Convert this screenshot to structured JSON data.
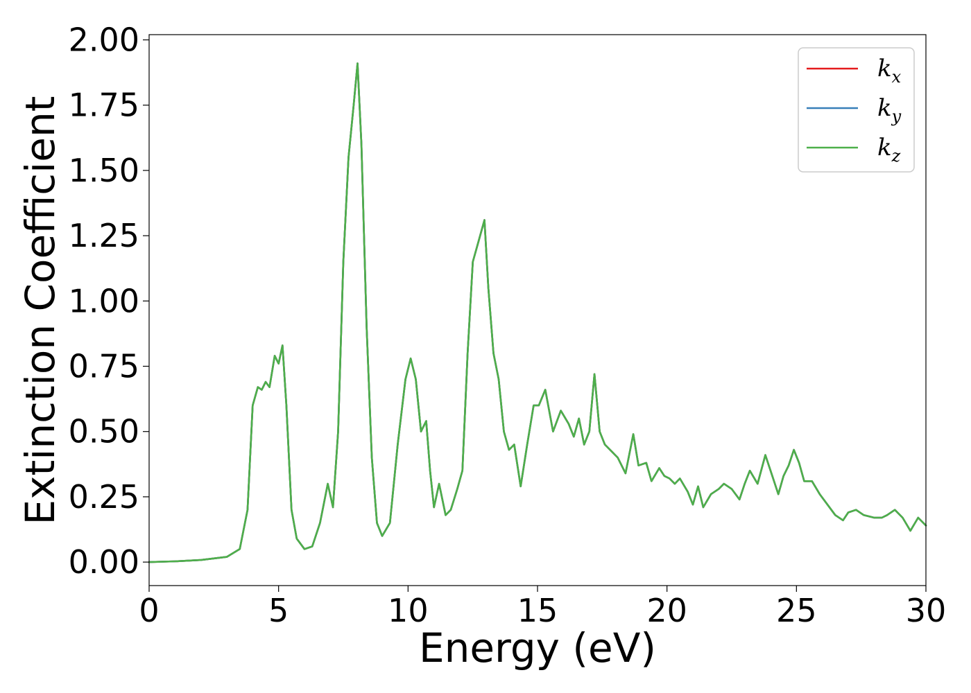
{
  "chart_data": {
    "type": "line",
    "xlabel": "Energy (eV)",
    "ylabel": "Extinction Coefficient",
    "xlim": [
      0,
      30
    ],
    "ylim": [
      -0.09,
      2.02
    ],
    "xticks": [
      0,
      5,
      10,
      15,
      20,
      25,
      30
    ],
    "xtick_labels": [
      "0",
      "5",
      "10",
      "15",
      "20",
      "25",
      "30"
    ],
    "yticks": [
      0,
      0.25,
      0.5,
      0.75,
      1.0,
      1.25,
      1.5,
      1.75,
      2.0
    ],
    "ytick_labels": [
      "0.00",
      "0.25",
      "0.50",
      "0.75",
      "1.00",
      "1.25",
      "1.50",
      "1.75",
      "2.00"
    ],
    "grid": false,
    "legend_position": "top-right",
    "series": [
      {
        "name": "k_x",
        "label_main": "k",
        "label_sub": "x",
        "color": "#e41a1c",
        "x": [
          0,
          1,
          2,
          3,
          3.5,
          3.8,
          4.0,
          4.2,
          4.35,
          4.5,
          4.65,
          4.85,
          5.0,
          5.15,
          5.3,
          5.5,
          5.7,
          6.0,
          6.3,
          6.6,
          6.9,
          7.1,
          7.3,
          7.5,
          7.7,
          7.9,
          8.05,
          8.2,
          8.4,
          8.6,
          8.8,
          9.0,
          9.3,
          9.6,
          9.9,
          10.1,
          10.3,
          10.5,
          10.7,
          10.85,
          11.0,
          11.2,
          11.45,
          11.65,
          11.9,
          12.1,
          12.3,
          12.5,
          12.7,
          12.95,
          13.1,
          13.3,
          13.5,
          13.7,
          13.9,
          14.1,
          14.35,
          14.6,
          14.85,
          15.05,
          15.3,
          15.6,
          15.9,
          16.2,
          16.4,
          16.6,
          16.8,
          17.0,
          17.2,
          17.4,
          17.6,
          17.9,
          18.1,
          18.4,
          18.7,
          18.9,
          19.2,
          19.4,
          19.7,
          19.9,
          20.1,
          20.3,
          20.5,
          20.8,
          21.0,
          21.2,
          21.4,
          21.7,
          22.0,
          22.2,
          22.5,
          22.8,
          23.0,
          23.2,
          23.5,
          23.8,
          24.0,
          24.3,
          24.5,
          24.7,
          24.9,
          25.1,
          25.3,
          25.6,
          25.9,
          26.2,
          26.5,
          26.8,
          27.0,
          27.3,
          27.6,
          28.0,
          28.3,
          28.5,
          28.8,
          29.1,
          29.4,
          29.7,
          30.0
        ],
        "y": [
          0.0,
          0.003,
          0.008,
          0.02,
          0.05,
          0.2,
          0.6,
          0.67,
          0.66,
          0.69,
          0.67,
          0.79,
          0.76,
          0.83,
          0.6,
          0.2,
          0.09,
          0.05,
          0.06,
          0.15,
          0.3,
          0.21,
          0.5,
          1.15,
          1.55,
          1.75,
          1.91,
          1.6,
          0.9,
          0.4,
          0.15,
          0.1,
          0.15,
          0.45,
          0.7,
          0.78,
          0.7,
          0.5,
          0.54,
          0.35,
          0.21,
          0.3,
          0.18,
          0.2,
          0.28,
          0.35,
          0.8,
          1.15,
          1.22,
          1.31,
          1.05,
          0.8,
          0.7,
          0.5,
          0.43,
          0.45,
          0.29,
          0.45,
          0.6,
          0.6,
          0.66,
          0.5,
          0.58,
          0.53,
          0.48,
          0.55,
          0.45,
          0.5,
          0.72,
          0.5,
          0.45,
          0.42,
          0.4,
          0.34,
          0.49,
          0.37,
          0.38,
          0.31,
          0.36,
          0.33,
          0.32,
          0.3,
          0.32,
          0.27,
          0.22,
          0.29,
          0.21,
          0.26,
          0.28,
          0.3,
          0.28,
          0.24,
          0.3,
          0.35,
          0.3,
          0.41,
          0.35,
          0.26,
          0.33,
          0.37,
          0.43,
          0.38,
          0.31,
          0.31,
          0.26,
          0.22,
          0.18,
          0.16,
          0.19,
          0.2,
          0.18,
          0.17,
          0.17,
          0.18,
          0.2,
          0.17,
          0.12,
          0.17,
          0.14
        ]
      },
      {
        "name": "k_y",
        "label_main": "k",
        "label_sub": "y",
        "color": "#377eb8",
        "x": [
          0,
          1,
          2,
          3,
          3.5,
          3.8,
          4.0,
          4.2,
          4.35,
          4.5,
          4.65,
          4.85,
          5.0,
          5.15,
          5.3,
          5.5,
          5.7,
          6.0,
          6.3,
          6.6,
          6.9,
          7.1,
          7.3,
          7.5,
          7.7,
          7.9,
          8.05,
          8.2,
          8.4,
          8.6,
          8.8,
          9.0,
          9.3,
          9.6,
          9.9,
          10.1,
          10.3,
          10.5,
          10.7,
          10.85,
          11.0,
          11.2,
          11.45,
          11.65,
          11.9,
          12.1,
          12.3,
          12.5,
          12.7,
          12.95,
          13.1,
          13.3,
          13.5,
          13.7,
          13.9,
          14.1,
          14.35,
          14.6,
          14.85,
          15.05,
          15.3,
          15.6,
          15.9,
          16.2,
          16.4,
          16.6,
          16.8,
          17.0,
          17.2,
          17.4,
          17.6,
          17.9,
          18.1,
          18.4,
          18.7,
          18.9,
          19.2,
          19.4,
          19.7,
          19.9,
          20.1,
          20.3,
          20.5,
          20.8,
          21.0,
          21.2,
          21.4,
          21.7,
          22.0,
          22.2,
          22.5,
          22.8,
          23.0,
          23.2,
          23.5,
          23.8,
          24.0,
          24.3,
          24.5,
          24.7,
          24.9,
          25.1,
          25.3,
          25.6,
          25.9,
          26.2,
          26.5,
          26.8,
          27.0,
          27.3,
          27.6,
          28.0,
          28.3,
          28.5,
          28.8,
          29.1,
          29.4,
          29.7,
          30.0
        ],
        "y": [
          0.0,
          0.003,
          0.008,
          0.02,
          0.05,
          0.2,
          0.6,
          0.67,
          0.66,
          0.69,
          0.67,
          0.79,
          0.76,
          0.83,
          0.6,
          0.2,
          0.09,
          0.05,
          0.06,
          0.15,
          0.3,
          0.21,
          0.5,
          1.15,
          1.55,
          1.75,
          1.91,
          1.6,
          0.9,
          0.4,
          0.15,
          0.1,
          0.15,
          0.45,
          0.7,
          0.78,
          0.7,
          0.5,
          0.54,
          0.35,
          0.21,
          0.3,
          0.18,
          0.2,
          0.28,
          0.35,
          0.8,
          1.15,
          1.22,
          1.31,
          1.05,
          0.8,
          0.7,
          0.5,
          0.43,
          0.45,
          0.29,
          0.45,
          0.6,
          0.6,
          0.66,
          0.5,
          0.58,
          0.53,
          0.48,
          0.55,
          0.45,
          0.5,
          0.72,
          0.5,
          0.45,
          0.42,
          0.4,
          0.34,
          0.49,
          0.37,
          0.38,
          0.31,
          0.36,
          0.33,
          0.32,
          0.3,
          0.32,
          0.27,
          0.22,
          0.29,
          0.21,
          0.26,
          0.28,
          0.3,
          0.28,
          0.24,
          0.3,
          0.35,
          0.3,
          0.41,
          0.35,
          0.26,
          0.33,
          0.37,
          0.43,
          0.38,
          0.31,
          0.31,
          0.26,
          0.22,
          0.18,
          0.16,
          0.19,
          0.2,
          0.18,
          0.17,
          0.17,
          0.18,
          0.2,
          0.17,
          0.12,
          0.17,
          0.14
        ]
      },
      {
        "name": "k_z",
        "label_main": "k",
        "label_sub": "z",
        "color": "#4daf4a",
        "x": [
          0,
          1,
          2,
          3,
          3.5,
          3.8,
          4.0,
          4.2,
          4.35,
          4.5,
          4.65,
          4.85,
          5.0,
          5.15,
          5.3,
          5.5,
          5.7,
          6.0,
          6.3,
          6.6,
          6.9,
          7.1,
          7.3,
          7.5,
          7.7,
          7.9,
          8.05,
          8.2,
          8.4,
          8.6,
          8.8,
          9.0,
          9.3,
          9.6,
          9.9,
          10.1,
          10.3,
          10.5,
          10.7,
          10.85,
          11.0,
          11.2,
          11.45,
          11.65,
          11.9,
          12.1,
          12.3,
          12.5,
          12.7,
          12.95,
          13.1,
          13.3,
          13.5,
          13.7,
          13.9,
          14.1,
          14.35,
          14.6,
          14.85,
          15.05,
          15.3,
          15.6,
          15.9,
          16.2,
          16.4,
          16.6,
          16.8,
          17.0,
          17.2,
          17.4,
          17.6,
          17.9,
          18.1,
          18.4,
          18.7,
          18.9,
          19.2,
          19.4,
          19.7,
          19.9,
          20.1,
          20.3,
          20.5,
          20.8,
          21.0,
          21.2,
          21.4,
          21.7,
          22.0,
          22.2,
          22.5,
          22.8,
          23.0,
          23.2,
          23.5,
          23.8,
          24.0,
          24.3,
          24.5,
          24.7,
          24.9,
          25.1,
          25.3,
          25.6,
          25.9,
          26.2,
          26.5,
          26.8,
          27.0,
          27.3,
          27.6,
          28.0,
          28.3,
          28.5,
          28.8,
          29.1,
          29.4,
          29.7,
          30.0
        ],
        "y": [
          0.0,
          0.003,
          0.008,
          0.02,
          0.05,
          0.2,
          0.6,
          0.67,
          0.66,
          0.69,
          0.67,
          0.79,
          0.76,
          0.83,
          0.6,
          0.2,
          0.09,
          0.05,
          0.06,
          0.15,
          0.3,
          0.21,
          0.5,
          1.15,
          1.55,
          1.75,
          1.91,
          1.6,
          0.9,
          0.4,
          0.15,
          0.1,
          0.15,
          0.45,
          0.7,
          0.78,
          0.7,
          0.5,
          0.54,
          0.35,
          0.21,
          0.3,
          0.18,
          0.2,
          0.28,
          0.35,
          0.8,
          1.15,
          1.22,
          1.31,
          1.05,
          0.8,
          0.7,
          0.5,
          0.43,
          0.45,
          0.29,
          0.45,
          0.6,
          0.6,
          0.66,
          0.5,
          0.58,
          0.53,
          0.48,
          0.55,
          0.45,
          0.5,
          0.72,
          0.5,
          0.45,
          0.42,
          0.4,
          0.34,
          0.49,
          0.37,
          0.38,
          0.31,
          0.36,
          0.33,
          0.32,
          0.3,
          0.32,
          0.27,
          0.22,
          0.29,
          0.21,
          0.26,
          0.28,
          0.3,
          0.28,
          0.24,
          0.3,
          0.35,
          0.3,
          0.41,
          0.35,
          0.26,
          0.33,
          0.37,
          0.43,
          0.38,
          0.31,
          0.31,
          0.26,
          0.22,
          0.18,
          0.16,
          0.19,
          0.2,
          0.18,
          0.17,
          0.17,
          0.18,
          0.2,
          0.17,
          0.12,
          0.17,
          0.14
        ]
      }
    ]
  }
}
